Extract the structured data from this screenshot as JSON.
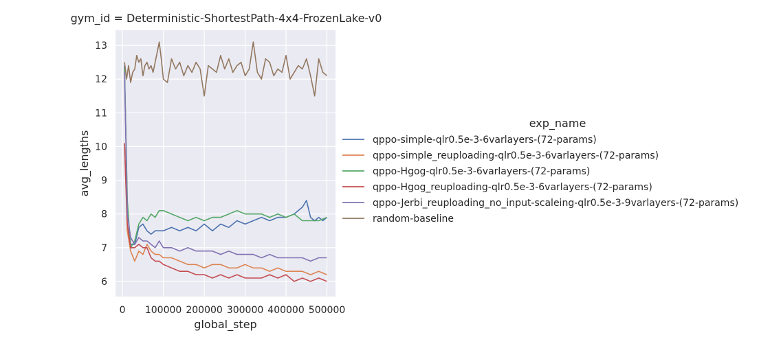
{
  "chart_data": {
    "type": "line",
    "title": "gym_id = Deterministic-ShortestPath-4x4-FrozenLake-v0",
    "xlabel": "global_step",
    "ylabel": "avg_lengths",
    "xlim": [
      -17000,
      521000
    ],
    "ylim": [
      5.55,
      13.45
    ],
    "x_ticks": [
      0,
      100000,
      200000,
      300000,
      400000,
      500000
    ],
    "x_tick_labels": [
      "0",
      "100000",
      "200000",
      "300000",
      "400000",
      "500000"
    ],
    "y_ticks": [
      6,
      7,
      8,
      9,
      10,
      11,
      12,
      13
    ],
    "y_tick_labels": [
      "6",
      "7",
      "8",
      "9",
      "10",
      "11",
      "12",
      "13"
    ],
    "grid": true,
    "legend_title": "exp_name",
    "legend_position": "right",
    "series": [
      {
        "name": "qppo-simple-qlr0.5e-3-6varlayers-(72-params)",
        "color": "#4c72b0",
        "x": [
          5000,
          12000,
          20000,
          30000,
          40000,
          50000,
          60000,
          70000,
          80000,
          90000,
          100000,
          120000,
          140000,
          160000,
          180000,
          200000,
          220000,
          240000,
          260000,
          280000,
          300000,
          320000,
          340000,
          360000,
          380000,
          400000,
          420000,
          440000,
          450000,
          460000,
          470000,
          480000,
          490000,
          500000
        ],
        "y": [
          12.4,
          8.2,
          7.1,
          7.1,
          7.6,
          7.7,
          7.5,
          7.4,
          7.5,
          7.5,
          7.5,
          7.6,
          7.5,
          7.6,
          7.5,
          7.7,
          7.5,
          7.7,
          7.6,
          7.8,
          7.7,
          7.8,
          7.9,
          7.8,
          7.9,
          7.9,
          8.0,
          8.2,
          8.4,
          7.9,
          7.8,
          7.9,
          7.8,
          7.9
        ]
      },
      {
        "name": "qppo-simple_reuploading-qlr0.5e-3-6varlayers-(72-params)",
        "color": "#dd8452",
        "x": [
          5000,
          12000,
          20000,
          30000,
          40000,
          50000,
          60000,
          70000,
          80000,
          90000,
          100000,
          120000,
          140000,
          160000,
          180000,
          200000,
          220000,
          240000,
          260000,
          280000,
          300000,
          320000,
          340000,
          360000,
          380000,
          400000,
          420000,
          440000,
          460000,
          480000,
          500000
        ],
        "y": [
          10.1,
          7.5,
          6.9,
          6.6,
          6.9,
          6.8,
          7.1,
          6.9,
          6.8,
          6.8,
          6.7,
          6.7,
          6.6,
          6.5,
          6.5,
          6.4,
          6.5,
          6.5,
          6.4,
          6.4,
          6.5,
          6.4,
          6.4,
          6.3,
          6.4,
          6.3,
          6.3,
          6.3,
          6.2,
          6.3,
          6.2
        ]
      },
      {
        "name": "qppo-Hgog-qlr0.5e-3-6varlayers-(72-params)",
        "color": "#55a868",
        "x": [
          5000,
          12000,
          20000,
          30000,
          40000,
          50000,
          60000,
          70000,
          80000,
          90000,
          100000,
          120000,
          140000,
          160000,
          180000,
          200000,
          220000,
          240000,
          260000,
          280000,
          300000,
          320000,
          340000,
          360000,
          380000,
          400000,
          420000,
          440000,
          460000,
          480000,
          500000
        ],
        "y": [
          12.3,
          8.4,
          7.0,
          7.2,
          7.7,
          7.9,
          7.8,
          8.0,
          7.9,
          8.1,
          8.1,
          8.0,
          7.9,
          7.8,
          7.9,
          7.8,
          7.9,
          7.9,
          8.0,
          8.1,
          8.0,
          8.0,
          8.0,
          7.9,
          8.0,
          7.9,
          8.0,
          7.8,
          7.8,
          7.8,
          7.9
        ]
      },
      {
        "name": "qppo-Hgog_reuploading-qlr0.5e-3-6varlayers-(72-params)",
        "color": "#c44e52",
        "x": [
          5000,
          12000,
          20000,
          30000,
          40000,
          50000,
          60000,
          70000,
          80000,
          90000,
          100000,
          120000,
          140000,
          160000,
          180000,
          200000,
          220000,
          240000,
          260000,
          280000,
          300000,
          320000,
          340000,
          360000,
          380000,
          400000,
          420000,
          440000,
          460000,
          480000,
          500000
        ],
        "y": [
          10.1,
          7.7,
          7.0,
          7.0,
          7.1,
          7.0,
          7.0,
          6.7,
          6.6,
          6.6,
          6.5,
          6.4,
          6.3,
          6.3,
          6.2,
          6.2,
          6.1,
          6.2,
          6.1,
          6.2,
          6.1,
          6.1,
          6.1,
          6.2,
          6.1,
          6.2,
          6.0,
          6.1,
          6.0,
          6.1,
          6.0
        ]
      },
      {
        "name": "qppo-Jerbi_reuploading_no_input-scaleing-qlr0.5e-3-9varlayers-(72-params)",
        "color": "#8172b3",
        "x": [
          5000,
          12000,
          20000,
          30000,
          40000,
          50000,
          60000,
          70000,
          80000,
          90000,
          100000,
          120000,
          140000,
          160000,
          180000,
          200000,
          220000,
          240000,
          260000,
          280000,
          300000,
          320000,
          340000,
          360000,
          380000,
          400000,
          420000,
          440000,
          460000,
          480000,
          500000
        ],
        "y": [
          12.2,
          8.0,
          7.3,
          7.1,
          7.3,
          7.2,
          7.2,
          7.1,
          7.0,
          7.2,
          7.0,
          7.0,
          6.9,
          7.0,
          6.9,
          6.9,
          6.9,
          6.8,
          6.9,
          6.8,
          6.8,
          6.8,
          6.7,
          6.8,
          6.7,
          6.7,
          6.7,
          6.7,
          6.6,
          6.7,
          6.7
        ]
      },
      {
        "name": "random-baseline",
        "color": "#937860",
        "x": [
          5000,
          10000,
          15000,
          20000,
          25000,
          30000,
          35000,
          40000,
          45000,
          50000,
          55000,
          60000,
          65000,
          70000,
          75000,
          80000,
          85000,
          90000,
          95000,
          100000,
          110000,
          120000,
          130000,
          140000,
          150000,
          160000,
          170000,
          180000,
          190000,
          200000,
          210000,
          220000,
          230000,
          240000,
          250000,
          260000,
          270000,
          280000,
          290000,
          300000,
          310000,
          320000,
          330000,
          340000,
          350000,
          360000,
          370000,
          380000,
          390000,
          400000,
          410000,
          420000,
          430000,
          440000,
          450000,
          460000,
          470000,
          480000,
          490000,
          500000
        ],
        "y": [
          12.5,
          12.0,
          12.4,
          11.9,
          12.2,
          12.3,
          12.7,
          12.5,
          12.6,
          12.1,
          12.4,
          12.5,
          12.3,
          12.4,
          12.2,
          12.5,
          12.8,
          13.1,
          12.6,
          12.0,
          11.9,
          12.6,
          12.3,
          12.5,
          12.1,
          12.4,
          12.2,
          12.5,
          12.3,
          11.5,
          12.4,
          12.3,
          12.2,
          12.7,
          12.3,
          12.6,
          12.2,
          12.4,
          12.5,
          12.1,
          12.3,
          13.1,
          12.2,
          12.0,
          12.6,
          12.5,
          12.1,
          12.3,
          12.2,
          12.7,
          12.0,
          12.2,
          12.4,
          12.3,
          12.6,
          12.1,
          11.5,
          12.6,
          12.2,
          12.1
        ]
      }
    ]
  }
}
